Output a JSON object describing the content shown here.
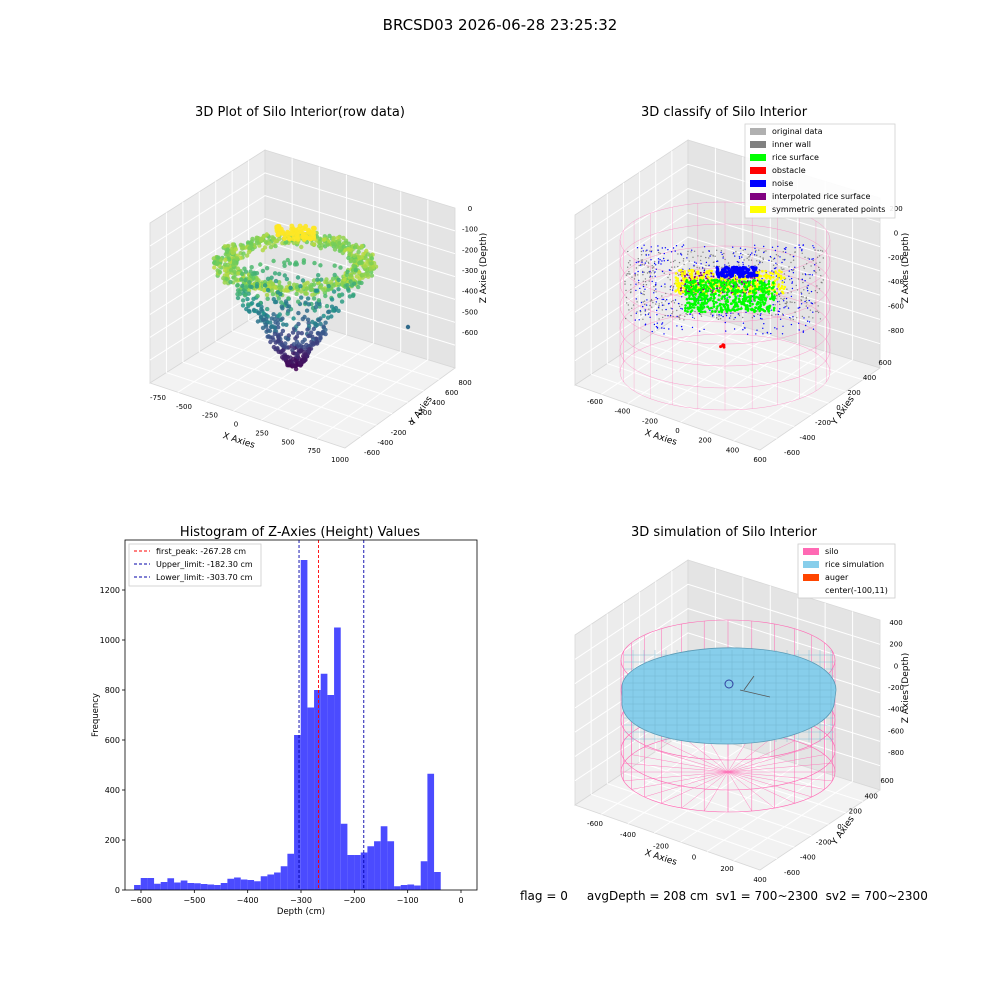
{
  "figure": {
    "suptitle": "BRCSD03 2026-06-28 23:25:32",
    "footer": "flag = 0     avgDepth = 208 cm  sv1 = 700~2300  sv2 = 700~2300"
  },
  "chart_data": [
    {
      "type": "scatter",
      "projection": "3d",
      "title": "3D Plot of Silo Interior(row data)",
      "xlabel": "X Axies",
      "ylabel": "Y Axies",
      "zlabel": "Z Axies (Depth)",
      "xticks": [
        "-750",
        "-500",
        "-250",
        "0",
        "250",
        "500",
        "750",
        "1000"
      ],
      "yticks": [
        "-600",
        "-400",
        "-200",
        "0",
        "200",
        "400",
        "600",
        "800"
      ],
      "zticks": [
        "0",
        "-100",
        "-200",
        "-300",
        "-400",
        "-500",
        "-600"
      ],
      "xlim": [
        -750,
        1000
      ],
      "ylim": [
        -600,
        800
      ],
      "zlim": [
        -650,
        0
      ],
      "colormap": "viridis",
      "points_summary": "ring of points at depth -150 to -300, central cluster near -100 (yellow), funnel down to about -600 (purple)"
    },
    {
      "type": "scatter",
      "projection": "3d",
      "title": "3D classify of Silo Interior",
      "xlabel": "X Axies",
      "ylabel": "Y Axies",
      "zlabel": "Z Axies (Depth)",
      "xticks": [
        "-600",
        "-400",
        "-200",
        "0",
        "200",
        "400",
        "600"
      ],
      "yticks": [
        "-600",
        "-400",
        "-200",
        "0",
        "200",
        "400",
        "600"
      ],
      "zticks": [
        "200",
        "0",
        "-200",
        "-400",
        "-600",
        "-800"
      ],
      "legend_position": "top-right",
      "legend": [
        {
          "label": "original data",
          "color": "#b0b0b0"
        },
        {
          "label": "inner wall",
          "color": "#808080"
        },
        {
          "label": "rice surface",
          "color": "#00ff00"
        },
        {
          "label": "obstacle",
          "color": "#ff0000"
        },
        {
          "label": "noise",
          "color": "#0000ff"
        },
        {
          "label": "interpolated rice surface",
          "color": "#800080"
        },
        {
          "label": "symmetric generated points",
          "color": "#ffff00"
        }
      ],
      "silo_wireframe_color": "#ff69b4"
    },
    {
      "type": "bar",
      "subtype": "histogram",
      "title": "Histogram of Z-Axies (Height) Values",
      "xlabel": "Depth (cm)",
      "ylabel": "Frequency",
      "xlim": [
        -630,
        30
      ],
      "ylim": [
        0,
        1400
      ],
      "xticks": [
        -600,
        -500,
        -400,
        -300,
        -200,
        -100,
        0
      ],
      "yticks": [
        0,
        200,
        400,
        600,
        800,
        1000,
        1200
      ],
      "bar_color": "#4b4bff",
      "bin_start": -613,
      "bin_width": 12.5,
      "values": [
        20,
        48,
        48,
        25,
        32,
        47,
        30,
        38,
        28,
        27,
        24,
        22,
        20,
        28,
        45,
        50,
        42,
        40,
        35,
        55,
        62,
        70,
        95,
        145,
        620,
        1320,
        730,
        800,
        865,
        780,
        1050,
        265,
        140,
        140,
        150,
        175,
        195,
        255,
        195,
        15,
        20,
        22,
        18,
        115,
        465,
        72
      ],
      "legend_position": "top-left",
      "lines": [
        {
          "label": "first_peak: -267.28 cm",
          "x": -267.28,
          "color": "#ff0000"
        },
        {
          "label": "Upper_limit: -182.30 cm",
          "x": -182.3,
          "color": "#0000aa"
        },
        {
          "label": "Lower_limit: -303.70 cm",
          "x": -303.7,
          "color": "#0000aa"
        }
      ]
    },
    {
      "type": "area",
      "projection": "3d",
      "title": "3D simulation of Silo Interior",
      "xlabel": "X Axies",
      "ylabel": "Y Axies",
      "zlabel": "Z Axies (Depth)",
      "xticks": [
        "-600",
        "-400",
        "-200",
        "0",
        "200",
        "400"
      ],
      "yticks": [
        "-600",
        "-400",
        "-200",
        "0",
        "200",
        "400",
        "600"
      ],
      "zticks": [
        "400",
        "200",
        "0",
        "-200",
        "-400",
        "-600",
        "-800"
      ],
      "legend_position": "top-right",
      "legend": [
        {
          "label": "silo",
          "color": "#ff69b4"
        },
        {
          "label": "rice simulation",
          "color": "#87ceeb"
        },
        {
          "label": "auger",
          "color": "#ff4500"
        },
        {
          "label": "center(-100,11)",
          "color": "none"
        }
      ]
    }
  ]
}
